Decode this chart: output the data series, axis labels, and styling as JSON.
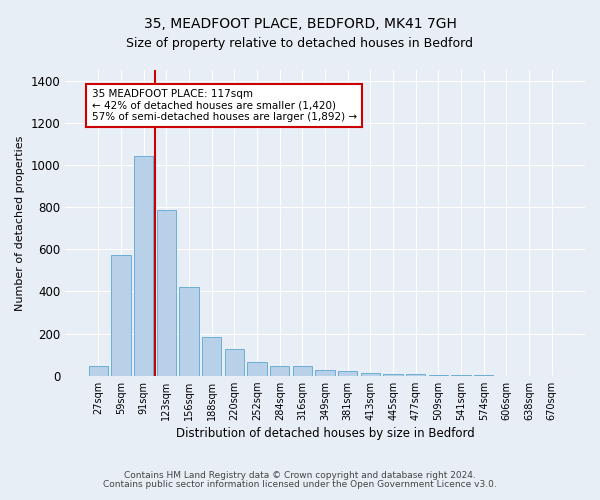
{
  "title1": "35, MEADFOOT PLACE, BEDFORD, MK41 7GH",
  "title2": "Size of property relative to detached houses in Bedford",
  "xlabel": "Distribution of detached houses by size in Bedford",
  "ylabel": "Number of detached properties",
  "footnote1": "Contains HM Land Registry data © Crown copyright and database right 2024.",
  "footnote2": "Contains public sector information licensed under the Open Government Licence v3.0.",
  "bar_labels": [
    "27sqm",
    "59sqm",
    "91sqm",
    "123sqm",
    "156sqm",
    "188sqm",
    "220sqm",
    "252sqm",
    "284sqm",
    "316sqm",
    "349sqm",
    "381sqm",
    "413sqm",
    "445sqm",
    "477sqm",
    "509sqm",
    "541sqm",
    "574sqm",
    "606sqm",
    "638sqm",
    "670sqm"
  ],
  "bar_values": [
    47,
    572,
    1040,
    785,
    420,
    183,
    125,
    65,
    48,
    48,
    25,
    22,
    15,
    10,
    8,
    5,
    3,
    2,
    0,
    0,
    0
  ],
  "bar_color": "#b8d0e8",
  "bar_edge_color": "#6aaed6",
  "bg_color": "#e8eef5",
  "plot_bg_color": "#e8eef5",
  "grid_color": "#ffffff",
  "vline_color": "#cc0000",
  "annotation_line1": "35 MEADFOOT PLACE: 117sqm",
  "annotation_line2": "← 42% of detached houses are smaller (1,420)",
  "annotation_line3": "57% of semi-detached houses are larger (1,892) →",
  "annotation_box_color": "#ffffff",
  "annotation_box_edge": "#cc0000",
  "ylim": [
    0,
    1450
  ],
  "yticks": [
    0,
    200,
    400,
    600,
    800,
    1000,
    1200,
    1400
  ],
  "title1_fontsize": 10,
  "title2_fontsize": 9
}
